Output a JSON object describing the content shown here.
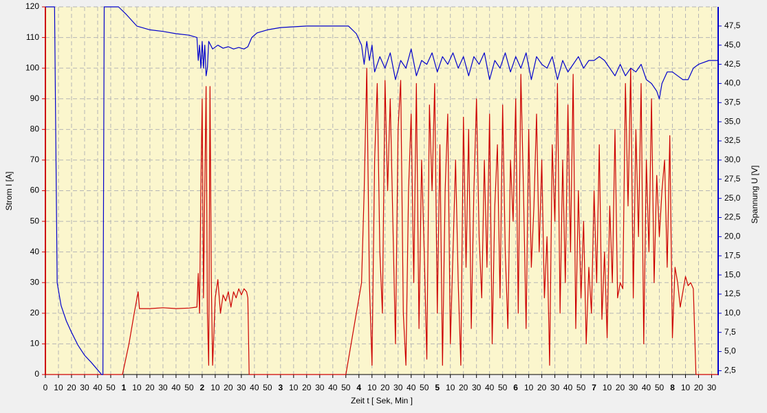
{
  "chart_data": {
    "type": "line",
    "ylabel": "Strom  I  [A]",
    "y2label": "Spannung  U  [V]",
    "xlabel": "Zeit  t  [ Sek, Min ]",
    "xlim": [
      0,
      515
    ],
    "ylim": [
      0,
      120
    ],
    "y2lim": [
      2,
      50
    ],
    "grid": true,
    "yticks": [
      0,
      10,
      20,
      30,
      40,
      50,
      60,
      70,
      80,
      90,
      100,
      110,
      120
    ],
    "y2ticks": [
      {
        "value": 2.5,
        "label": "2,5"
      },
      {
        "value": 5,
        "label": "5,0"
      },
      {
        "value": 7.5,
        "label": "7,5"
      },
      {
        "value": 10,
        "label": "10,0"
      },
      {
        "value": 12.5,
        "label": "12,5"
      },
      {
        "value": 15,
        "label": "15,0"
      },
      {
        "value": 17.5,
        "label": "17,5"
      },
      {
        "value": 20,
        "label": "20,0"
      },
      {
        "value": 22.5,
        "label": "22,5"
      },
      {
        "value": 25,
        "label": "25,0"
      },
      {
        "value": 27.5,
        "label": "27,5"
      },
      {
        "value": 30,
        "label": "30,0"
      },
      {
        "value": 32.5,
        "label": "32,5"
      },
      {
        "value": 35,
        "label": "35,0"
      },
      {
        "value": 37.5,
        "label": "37,5"
      },
      {
        "value": 40,
        "label": "40,0"
      },
      {
        "value": 42.5,
        "label": "42,5"
      },
      {
        "value": 45,
        "label": "45,0"
      },
      {
        "value": 47.5,
        "label": "47,5"
      }
    ],
    "xticks": [
      0,
      10,
      20,
      30,
      40,
      50,
      {
        "value": 60,
        "label": "1"
      },
      {
        "value": 70,
        "label": "10"
      },
      {
        "value": 80,
        "label": "20"
      },
      {
        "value": 90,
        "label": "30"
      },
      {
        "value": 100,
        "label": "40"
      },
      {
        "value": 110,
        "label": "50"
      },
      {
        "value": 120,
        "label": "2"
      },
      {
        "value": 130,
        "label": "10"
      },
      {
        "value": 140,
        "label": "20"
      },
      {
        "value": 150,
        "label": "30"
      },
      {
        "value": 160,
        "label": "40"
      },
      {
        "value": 170,
        "label": "50"
      },
      {
        "value": 180,
        "label": "3"
      },
      {
        "value": 190,
        "label": "10"
      },
      {
        "value": 200,
        "label": "20"
      },
      {
        "value": 210,
        "label": "30"
      },
      {
        "value": 220,
        "label": "40"
      },
      {
        "value": 230,
        "label": "50"
      },
      {
        "value": 240,
        "label": "4"
      },
      {
        "value": 250,
        "label": "10"
      },
      {
        "value": 260,
        "label": "20"
      },
      {
        "value": 270,
        "label": "30"
      },
      {
        "value": 280,
        "label": "40"
      },
      {
        "value": 290,
        "label": "50"
      },
      {
        "value": 300,
        "label": "5"
      },
      {
        "value": 310,
        "label": "10"
      },
      {
        "value": 320,
        "label": "20"
      },
      {
        "value": 330,
        "label": "30"
      },
      {
        "value": 340,
        "label": "40"
      },
      {
        "value": 350,
        "label": "50"
      },
      {
        "value": 360,
        "label": "6"
      },
      {
        "value": 370,
        "label": "10"
      },
      {
        "value": 380,
        "label": "20"
      },
      {
        "value": 390,
        "label": "30"
      },
      {
        "value": 400,
        "label": "40"
      },
      {
        "value": 410,
        "label": "50"
      },
      {
        "value": 420,
        "label": "7"
      },
      {
        "value": 430,
        "label": "10"
      },
      {
        "value": 440,
        "label": "20"
      },
      {
        "value": 450,
        "label": "30"
      },
      {
        "value": 460,
        "label": "40"
      },
      {
        "value": 470,
        "label": "50"
      },
      {
        "value": 480,
        "label": "8"
      },
      {
        "value": 490,
        "label": "10"
      },
      {
        "value": 500,
        "label": "20"
      },
      {
        "value": 510,
        "label": "30"
      }
    ],
    "series": [
      {
        "color": "#cc0000",
        "axis": "y",
        "x": [
          0,
          59,
          64,
          68,
          71,
          72,
          80,
          90,
          100,
          110,
          116,
          117,
          118,
          119,
          120,
          121,
          122,
          123,
          124,
          125,
          126,
          127,
          128,
          130,
          132,
          134,
          136,
          138,
          140,
          142,
          144,
          146,
          148,
          150,
          152,
          154,
          155,
          156,
          230,
          236,
          242,
          244,
          246,
          248,
          250,
          252,
          254,
          256,
          258,
          260,
          262,
          264,
          266,
          268,
          270,
          272,
          274,
          276,
          278,
          280,
          282,
          284,
          286,
          288,
          290,
          292,
          294,
          296,
          298,
          300,
          302,
          304,
          306,
          308,
          310,
          312,
          314,
          316,
          318,
          320,
          322,
          324,
          326,
          328,
          330,
          332,
          334,
          336,
          338,
          340,
          342,
          344,
          346,
          348,
          350,
          352,
          354,
          356,
          358,
          360,
          362,
          364,
          366,
          368,
          370,
          372,
          374,
          376,
          378,
          380,
          382,
          384,
          386,
          388,
          390,
          392,
          394,
          396,
          398,
          400,
          402,
          404,
          406,
          408,
          410,
          412,
          414,
          416,
          418,
          420,
          422,
          424,
          426,
          428,
          430,
          432,
          434,
          436,
          438,
          440,
          442,
          444,
          446,
          448,
          450,
          452,
          454,
          456,
          458,
          460,
          462,
          464,
          466,
          468,
          470,
          472,
          474,
          476,
          478,
          480,
          482,
          484,
          486,
          488,
          490,
          492,
          494,
          496,
          498,
          515
        ],
        "values": [
          0,
          0,
          10,
          20,
          27,
          21.5,
          21.5,
          21.8,
          21.5,
          21.7,
          22,
          33,
          20,
          60,
          90,
          25,
          60,
          94,
          20,
          3,
          94,
          30,
          3,
          25,
          31,
          20,
          26,
          24,
          27,
          22,
          27,
          25,
          28,
          26,
          28,
          27,
          25,
          0,
          0,
          15,
          30,
          60,
          100,
          30,
          3,
          70,
          95,
          40,
          20,
          96,
          60,
          90,
          50,
          10,
          80,
          96,
          20,
          3,
          60,
          85,
          30,
          95,
          15,
          70,
          40,
          5,
          88,
          60,
          95,
          20,
          75,
          3,
          60,
          85,
          10,
          40,
          70,
          30,
          3,
          84,
          35,
          80,
          15,
          60,
          90,
          45,
          25,
          70,
          35,
          85,
          10,
          55,
          75,
          25,
          88,
          40,
          15,
          70,
          50,
          90,
          20,
          98,
          60,
          15,
          80,
          35,
          55,
          85,
          40,
          70,
          25,
          45,
          3,
          75,
          50,
          95,
          20,
          70,
          30,
          88,
          40,
          98,
          15,
          60,
          25,
          50,
          10,
          35,
          20,
          60,
          30,
          75,
          18,
          40,
          12,
          55,
          30,
          80,
          25,
          30,
          28,
          95,
          55,
          100,
          25,
          80,
          45,
          95,
          10,
          70,
          40,
          90,
          30,
          65,
          45,
          60,
          70,
          35,
          78,
          12,
          35,
          30,
          22,
          27,
          32,
          29,
          30,
          28,
          0,
          0
        ]
      },
      {
        "color": "#0000cc",
        "axis": "y2",
        "x": [
          0,
          7,
          9,
          12,
          16,
          20,
          25,
          30,
          35,
          40,
          43,
          44,
          45,
          56,
          62,
          70,
          80,
          90,
          100,
          110,
          116,
          117,
          118,
          119,
          120,
          121,
          122,
          123,
          124,
          125,
          128,
          132,
          136,
          140,
          144,
          148,
          152,
          155,
          158,
          162,
          170,
          180,
          200,
          220,
          232,
          238,
          242,
          244,
          246,
          248,
          250,
          252,
          256,
          260,
          264,
          268,
          272,
          276,
          280,
          284,
          288,
          292,
          296,
          300,
          304,
          308,
          312,
          316,
          320,
          324,
          328,
          332,
          336,
          340,
          344,
          348,
          352,
          356,
          360,
          364,
          368,
          372,
          376,
          380,
          384,
          388,
          392,
          396,
          400,
          404,
          408,
          412,
          416,
          420,
          424,
          428,
          432,
          436,
          440,
          444,
          448,
          452,
          456,
          460,
          464,
          468,
          470,
          472,
          476,
          480,
          484,
          488,
          492,
          496,
          500,
          508,
          515
        ],
        "values": [
          50,
          50,
          14,
          11,
          9,
          7.5,
          5.8,
          4.5,
          3.6,
          2.6,
          2,
          2,
          50,
          50,
          49,
          47.5,
          47,
          46.8,
          46.5,
          46.3,
          46,
          43,
          45,
          42,
          45.5,
          42,
          45,
          41,
          42,
          45.5,
          44.5,
          45,
          44.6,
          44.8,
          44.5,
          44.7,
          44.5,
          44.8,
          46,
          46.6,
          47,
          47.3,
          47.5,
          47.5,
          47.5,
          46.5,
          45,
          42.5,
          45.5,
          43,
          45,
          41.5,
          43.5,
          42,
          44,
          40.5,
          43,
          42,
          44.5,
          41,
          43,
          42.5,
          44,
          41.5,
          43.5,
          42.5,
          44,
          42,
          43.5,
          41,
          43.5,
          42.5,
          44,
          40.5,
          43,
          42,
          44,
          41.5,
          43.5,
          42,
          44,
          40.5,
          43.5,
          42.5,
          42,
          43.5,
          40.5,
          43,
          41.5,
          42.5,
          43.5,
          42,
          43,
          43,
          43.5,
          43,
          42,
          41,
          42.5,
          41,
          42,
          41.5,
          42.5,
          40.5,
          40,
          39,
          38,
          40,
          41.5,
          41.5,
          41,
          40.5,
          40.5,
          42,
          42.5,
          43,
          43
        ]
      }
    ]
  }
}
